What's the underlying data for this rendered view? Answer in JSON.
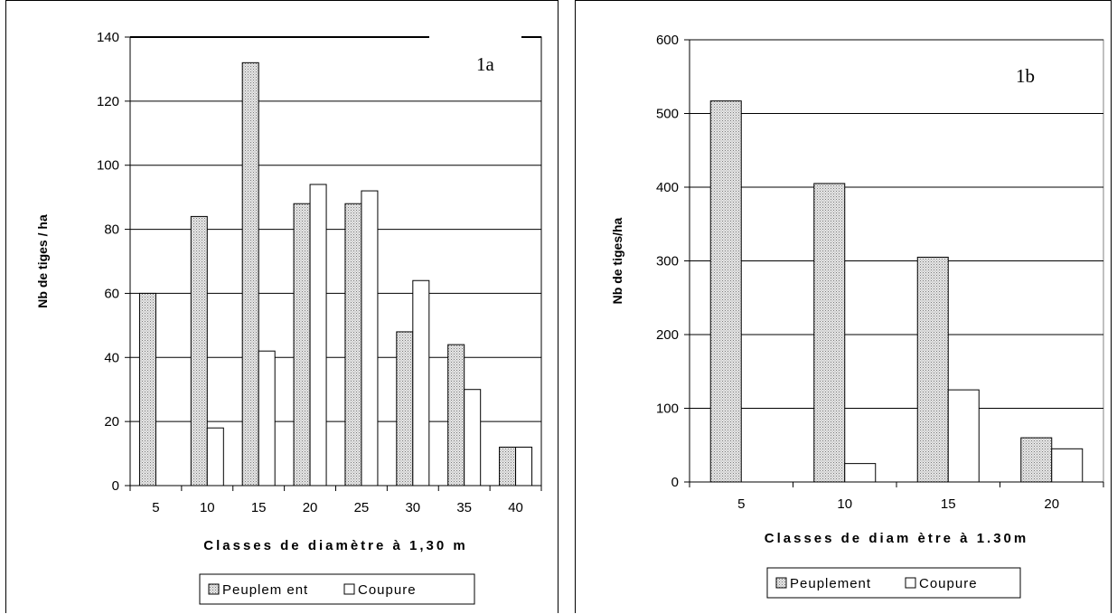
{
  "chart_data": [
    {
      "type": "bar",
      "panel_label": "1a",
      "categories": [
        "5",
        "10",
        "15",
        "20",
        "25",
        "30",
        "35",
        "40"
      ],
      "series": [
        {
          "name": "Peuplem ent",
          "values": [
            60,
            84,
            132,
            88,
            88,
            48,
            44,
            12
          ]
        },
        {
          "name": "Coupure",
          "values": [
            0,
            18,
            42,
            94,
            92,
            64,
            30,
            12
          ]
        }
      ],
      "yticks": [
        "0",
        "20",
        "40",
        "60",
        "80",
        "100",
        "120",
        "140"
      ],
      "ylim": [
        0,
        140
      ],
      "xlabel": "Classes de diamètre à 1,30 m",
      "ylabel": "Nb de tiges / ha",
      "grid": true,
      "legend_position": "bottom"
    },
    {
      "type": "bar",
      "panel_label": "1b",
      "categories": [
        "5",
        "10",
        "15",
        "20"
      ],
      "series": [
        {
          "name": "Peuplement",
          "values": [
            517,
            405,
            305,
            60
          ]
        },
        {
          "name": "Coupure",
          "values": [
            0,
            25,
            125,
            45
          ]
        }
      ],
      "yticks": [
        "0",
        "100",
        "200",
        "300",
        "400",
        "500",
        "600"
      ],
      "ylim": [
        0,
        600
      ],
      "xlabel": "Classes de diam ètre à 1.30m",
      "ylabel": "Nb de tiges/ha",
      "grid": true,
      "legend_position": "bottom"
    }
  ]
}
